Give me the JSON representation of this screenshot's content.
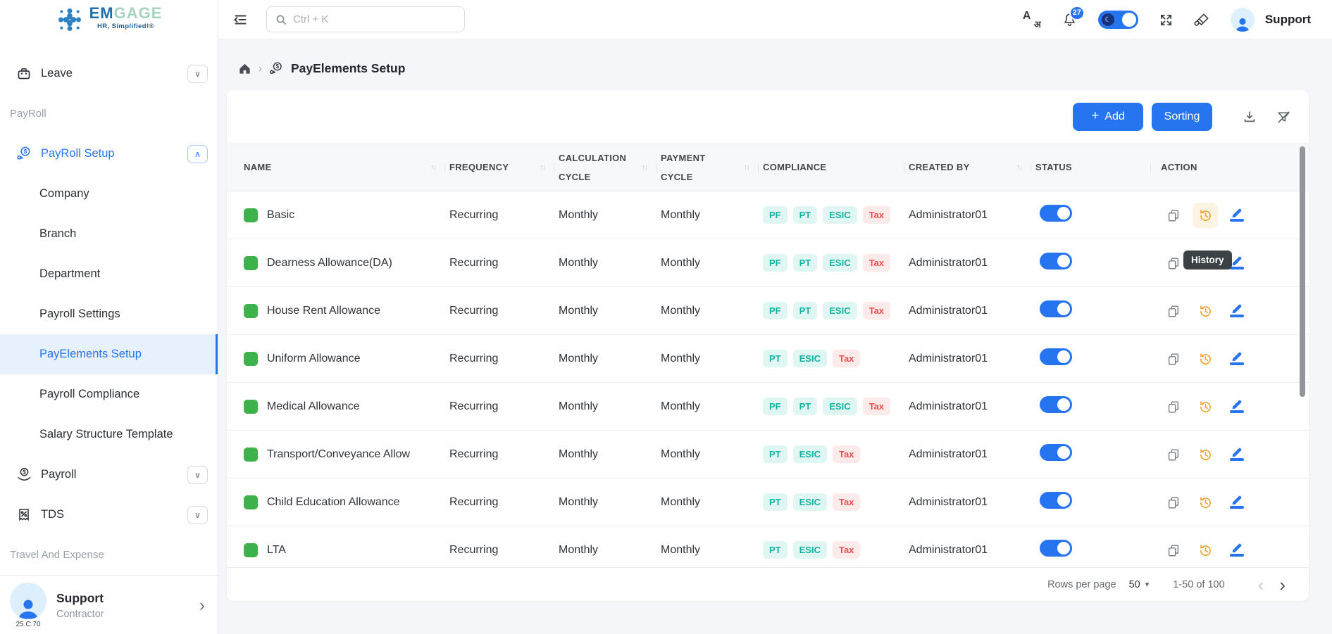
{
  "brand": {
    "name_em": "EM",
    "name_gage": "GAGE",
    "tagline": "HR, Simplified!®"
  },
  "topbar": {
    "search_placeholder": "Ctrl + K",
    "notification_count": "27",
    "user_label": "Support"
  },
  "breadcrumb": {
    "title": "PayElements Setup"
  },
  "sidebar": {
    "leave_label": "Leave",
    "payroll_section_label": "PayRoll",
    "payroll_setup_label": "PayRoll Setup",
    "sub_items": [
      {
        "label": "Company",
        "active": false
      },
      {
        "label": "Branch",
        "active": false
      },
      {
        "label": "Department",
        "active": false
      },
      {
        "label": "Payroll Settings",
        "active": false
      },
      {
        "label": "PayElements Setup",
        "active": true
      },
      {
        "label": "Payroll Compliance",
        "active": false
      },
      {
        "label": "Salary Structure Template",
        "active": false
      }
    ],
    "payroll_label": "Payroll",
    "tds_label": "TDS",
    "travel_section_label": "Travel And Expense",
    "user": {
      "name": "Support",
      "role": "Contractor",
      "version": "25.C.70"
    }
  },
  "toolbar": {
    "add_icon": "+",
    "add_label": "Add",
    "sorting_label": "Sorting"
  },
  "table": {
    "columns": [
      {
        "label": "NAME",
        "key": "name",
        "sortable": true
      },
      {
        "label": "FREQUENCY",
        "key": "frequency",
        "sortable": true
      },
      {
        "label": "CALCULATION CYCLE",
        "key": "calculation_cycle",
        "sortable": true
      },
      {
        "label": "PAYMENT CYCLE",
        "key": "payment_cycle",
        "sortable": true
      },
      {
        "label": "COMPLIANCE",
        "key": "compliance",
        "sortable": false
      },
      {
        "label": "CREATED BY",
        "key": "created_by",
        "sortable": true
      },
      {
        "label": "STATUS",
        "key": "status",
        "sortable": false
      },
      {
        "label": "ACTION",
        "key": "action",
        "sortable": false
      }
    ],
    "rows": [
      {
        "name": "Basic",
        "frequency": "Recurring",
        "calculation_cycle": "Monthly",
        "payment_cycle": "Monthly",
        "compliance": [
          "PF",
          "PT",
          "ESIC",
          "Tax"
        ],
        "created_by": "Administrator01",
        "status_on": true
      },
      {
        "name": "Dearness Allowance(DA)",
        "frequency": "Recurring",
        "calculation_cycle": "Monthly",
        "payment_cycle": "Monthly",
        "compliance": [
          "PF",
          "PT",
          "ESIC",
          "Tax"
        ],
        "created_by": "Administrator01",
        "status_on": true
      },
      {
        "name": "House Rent Allowance",
        "frequency": "Recurring",
        "calculation_cycle": "Monthly",
        "payment_cycle": "Monthly",
        "compliance": [
          "PF",
          "PT",
          "ESIC",
          "Tax"
        ],
        "created_by": "Administrator01",
        "status_on": true
      },
      {
        "name": "Uniform Allowance",
        "frequency": "Recurring",
        "calculation_cycle": "Monthly",
        "payment_cycle": "Monthly",
        "compliance": [
          "PT",
          "ESIC",
          "Tax"
        ],
        "created_by": "Administrator01",
        "status_on": true
      },
      {
        "name": "Medical Allowance",
        "frequency": "Recurring",
        "calculation_cycle": "Monthly",
        "payment_cycle": "Monthly",
        "compliance": [
          "PF",
          "PT",
          "ESIC",
          "Tax"
        ],
        "created_by": "Administrator01",
        "status_on": true
      },
      {
        "name": "Transport/Conveyance Allow",
        "frequency": "Recurring",
        "calculation_cycle": "Monthly",
        "payment_cycle": "Monthly",
        "compliance": [
          "PT",
          "ESIC",
          "Tax"
        ],
        "created_by": "Administrator01",
        "status_on": true
      },
      {
        "name": "Child Education Allowance",
        "frequency": "Recurring",
        "calculation_cycle": "Monthly",
        "payment_cycle": "Monthly",
        "compliance": [
          "PT",
          "ESIC",
          "Tax"
        ],
        "created_by": "Administrator01",
        "status_on": true
      },
      {
        "name": "LTA",
        "frequency": "Recurring",
        "calculation_cycle": "Monthly",
        "payment_cycle": "Monthly",
        "compliance": [
          "PT",
          "ESIC",
          "Tax"
        ],
        "created_by": "Administrator01",
        "status_on": true
      }
    ]
  },
  "tooltip": {
    "label": "History"
  },
  "pagination": {
    "rows_per_page_label": "Rows per page",
    "rows_per_page_value": "50",
    "range": "1-50 of 100"
  },
  "colors": {
    "primary": "#2674f0",
    "badge_teal": "#12b2a2",
    "badge_teal_bg": "#e0f6f2",
    "badge_red": "#ee4e4e",
    "badge_red_bg": "#fdeaea",
    "element_green": "#3db24b",
    "history_amber": "#f2a42d",
    "tooltip_bg": "#3c4146"
  }
}
